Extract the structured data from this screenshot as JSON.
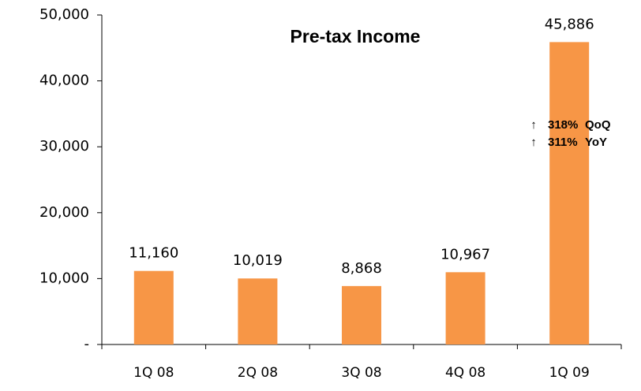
{
  "chart_data": {
    "type": "bar",
    "title": "Pre-tax Income",
    "categories": [
      "1Q 08",
      "2Q 08",
      "3Q 08",
      "4Q 08",
      "1Q 09"
    ],
    "values": [
      11160,
      10019,
      8868,
      10967,
      45886
    ],
    "value_labels": [
      "11,160",
      "10,019",
      "8,868",
      "10,967",
      "45,886"
    ],
    "color": "#f79646",
    "ylim": [
      0,
      50000
    ],
    "yticks": [
      {
        "value": 0,
        "label": "-"
      },
      {
        "value": 10000,
        "label": "10,000"
      },
      {
        "value": 20000,
        "label": "20,000"
      },
      {
        "value": 30000,
        "label": "30,000"
      },
      {
        "value": 40000,
        "label": "40,000"
      },
      {
        "value": 50000,
        "label": "50,000"
      }
    ],
    "grid": false,
    "annotations": [
      {
        "arrow": "↑",
        "change": "318%",
        "label": "QoQ"
      },
      {
        "arrow": "↑",
        "change": "311%",
        "label": "YoY"
      }
    ]
  }
}
